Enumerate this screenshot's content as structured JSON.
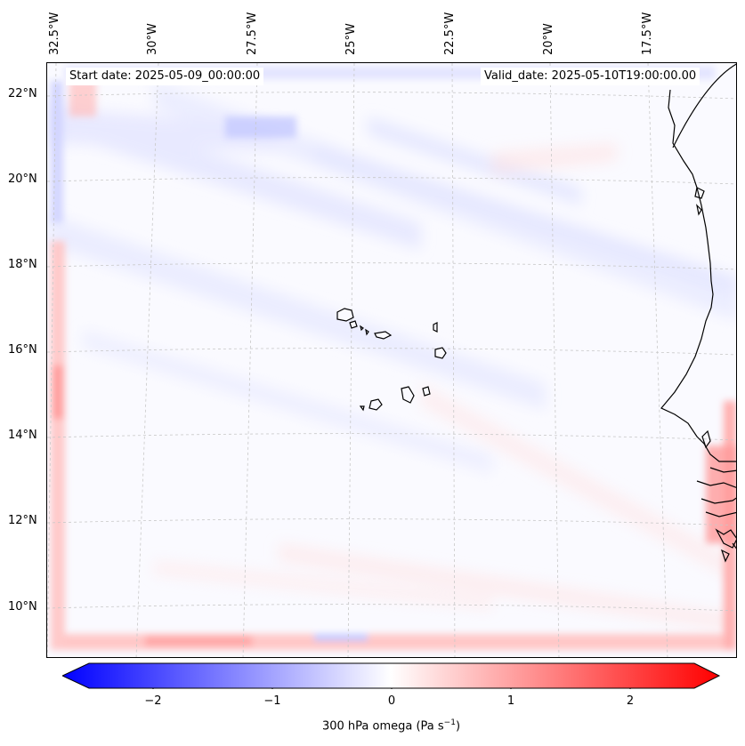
{
  "map": {
    "start_date": "Start date: 2025-05-09_00:00:00",
    "valid_date": "Valid_date: 2025-05-10T19:00:00.00",
    "lat_labels": [
      "22°N",
      "20°N",
      "18°N",
      "16°N",
      "14°N",
      "12°N",
      "10°N"
    ],
    "lon_labels": [
      "32.5°W",
      "30°W",
      "27.5°W",
      "25°W",
      "22.5°W",
      "20°W",
      "17.5°W"
    ],
    "colorbar": {
      "label_prefix": "300 hPa omega (Pa s",
      "label_exp": "−1",
      "label_suffix": ")",
      "ticks": [
        "−2",
        "−1",
        "0",
        "1",
        "2"
      ],
      "min": -2.7,
      "max": 2.7,
      "colormap": "bwr"
    }
  },
  "colors": {
    "negative": "#0000ff",
    "neutral": "#ffffff",
    "positive": "#ff0000",
    "coastline": "#000000",
    "gridline": "#c8c8c8"
  }
}
